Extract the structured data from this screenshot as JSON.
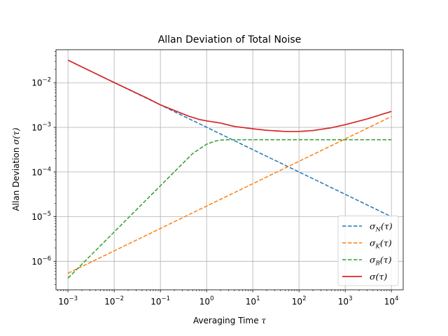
{
  "chart_data": {
    "type": "line",
    "title": "Allan Deviation of Total Noise",
    "xlabel": "Averaging Time",
    "xlabel_symbol": "τ",
    "ylabel": "Allan Deviation",
    "ylabel_symbol": "σ(τ)",
    "xscale": "log",
    "yscale": "log",
    "xlim": [
      0.00055,
      18000
    ],
    "ylim": [
      2.3e-07,
      0.055
    ],
    "xticks": [
      {
        "value": 0.001,
        "base": "10",
        "exp": "−3"
      },
      {
        "value": 0.01,
        "base": "10",
        "exp": "−2"
      },
      {
        "value": 0.1,
        "base": "10",
        "exp": "−1"
      },
      {
        "value": 1,
        "base": "10",
        "exp": "0"
      },
      {
        "value": 10,
        "base": "10",
        "exp": "1"
      },
      {
        "value": 100,
        "base": "10",
        "exp": "2"
      },
      {
        "value": 1000,
        "base": "10",
        "exp": "3"
      },
      {
        "value": 10000,
        "base": "10",
        "exp": "4"
      }
    ],
    "yticks": [
      {
        "value": 1e-06,
        "base": "10",
        "exp": "−6"
      },
      {
        "value": 1e-05,
        "base": "10",
        "exp": "−5"
      },
      {
        "value": 0.0001,
        "base": "10",
        "exp": "−4"
      },
      {
        "value": 0.001,
        "base": "10",
        "exp": "−3"
      },
      {
        "value": 0.01,
        "base": "10",
        "exp": "−2"
      }
    ],
    "grid": true,
    "legend_position": "lower-right",
    "series": [
      {
        "name": "σN(τ)",
        "symbol": "σ",
        "subscript": "N",
        "arg": "(τ)",
        "color": "#1f77b4",
        "dash": true,
        "x": [
          0.001,
          10000
        ],
        "y": [
          0.032,
          1e-05
        ]
      },
      {
        "name": "σK(τ)",
        "symbol": "σ",
        "subscript": "K",
        "arg": "(τ)",
        "color": "#ff7f0e",
        "dash": true,
        "x": [
          0.001,
          10000
        ],
        "y": [
          5.4e-07,
          0.00175
        ]
      },
      {
        "name": "σB(τ)",
        "symbol": "σ",
        "subscript": "B",
        "arg": "(τ)",
        "color": "#2ca02c",
        "dash": true,
        "x": [
          0.001,
          0.5,
          1,
          1.5,
          2,
          3,
          5,
          10000
        ],
        "y": [
          4.2e-07,
          0.00026,
          0.00042,
          0.00049,
          0.00052,
          0.00053,
          0.00053,
          0.00053
        ]
      },
      {
        "name": "σ(τ)",
        "symbol": "σ",
        "subscript": "",
        "arg": "(τ)",
        "color": "#d62728",
        "dash": false,
        "x": [
          0.001,
          0.01,
          0.05,
          0.1,
          0.2,
          0.4,
          0.7,
          1,
          2,
          4,
          10,
          20,
          50,
          100,
          200,
          500,
          1000,
          3000,
          10000
        ],
        "y": [
          0.032,
          0.0101,
          0.0046,
          0.0032,
          0.0024,
          0.0018,
          0.0015,
          0.0014,
          0.00125,
          0.00105,
          0.00093,
          0.00086,
          0.00081,
          0.00081,
          0.00085,
          0.00098,
          0.00115,
          0.00155,
          0.00228
        ]
      }
    ]
  }
}
